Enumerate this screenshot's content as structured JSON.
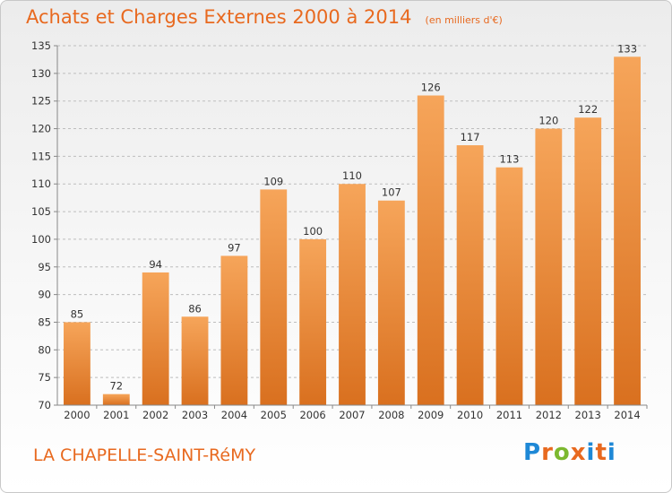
{
  "header": {
    "title": "Achats et Charges Externes 2000 à 2014",
    "unit": "(en milliers d'€)"
  },
  "footer": {
    "place": "LA CHAPELLE-SAINT-RéMY",
    "logo_letters": [
      "P",
      "r",
      "o",
      "x",
      "i",
      "t",
      "i"
    ]
  },
  "colors": {
    "accent": "#e8691f",
    "bar_top": "#f6a55a",
    "bar_bottom": "#d9701f",
    "logo": [
      "#1e88d6",
      "#e8691f",
      "#7cb82f",
      "#e8691f",
      "#1e88d6",
      "#e8691f",
      "#1e88d6"
    ]
  },
  "chart_data": {
    "type": "bar",
    "title": "Achats et Charges Externes 2000 à 2014",
    "categories": [
      "2000",
      "2001",
      "2002",
      "2003",
      "2004",
      "2005",
      "2006",
      "2007",
      "2008",
      "2009",
      "2010",
      "2011",
      "2012",
      "2013",
      "2014"
    ],
    "values": [
      85,
      72,
      94,
      86,
      97,
      109,
      100,
      110,
      107,
      126,
      117,
      113,
      120,
      122,
      133
    ],
    "ylim": [
      70,
      135
    ],
    "yticks": [
      70,
      75,
      80,
      85,
      90,
      95,
      100,
      105,
      110,
      115,
      120,
      125,
      130,
      135
    ],
    "grid": true,
    "xlabel": "",
    "ylabel": ""
  }
}
